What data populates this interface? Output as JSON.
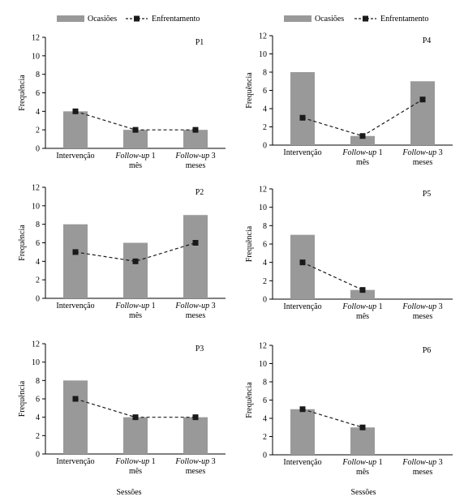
{
  "legend": {
    "bar_label": "Ocasiões",
    "line_label": "Enfrentamento",
    "bar_color": "#999999",
    "line_color": "#1a1a1a"
  },
  "axis_common": {
    "ylabel": "Frequência",
    "xlabel": "Sessões"
  },
  "chart_data": [
    {
      "type": "bar",
      "panel": "P1",
      "categories": [
        "Intervenção",
        "Follow-up 1 mês",
        "Follow-up 3 meses"
      ],
      "series": [
        {
          "name": "Ocasiões",
          "type": "bar",
          "values": [
            4,
            2,
            2
          ]
        },
        {
          "name": "Enfrentamento",
          "type": "line",
          "values": [
            4,
            2,
            2
          ]
        }
      ],
      "ylabel": "Frequência",
      "ylim": [
        0,
        12
      ],
      "yticks": [
        0,
        2,
        4,
        6,
        8,
        10,
        12
      ]
    },
    {
      "type": "bar",
      "panel": "P4",
      "categories": [
        "Intervenção",
        "Follow-up 1 mês",
        "Follow-up 3 meses"
      ],
      "series": [
        {
          "name": "Ocasiões",
          "type": "bar",
          "values": [
            8,
            1,
            7
          ]
        },
        {
          "name": "Enfrentamento",
          "type": "line",
          "values": [
            3,
            1,
            5
          ]
        }
      ],
      "ylabel": "Frequência",
      "ylim": [
        0,
        12
      ],
      "yticks": [
        0,
        2,
        4,
        6,
        8,
        10,
        12
      ]
    },
    {
      "type": "bar",
      "panel": "P2",
      "categories": [
        "Intervenção",
        "Follow-up 1 mês",
        "Follow-up 3 meses"
      ],
      "series": [
        {
          "name": "Ocasiões",
          "type": "bar",
          "values": [
            8,
            6,
            9
          ]
        },
        {
          "name": "Enfrentamento",
          "type": "line",
          "values": [
            5,
            4,
            6
          ]
        }
      ],
      "ylabel": "Frequência",
      "ylim": [
        0,
        12
      ],
      "yticks": [
        0,
        2,
        4,
        6,
        8,
        10,
        12
      ]
    },
    {
      "type": "bar",
      "panel": "P5",
      "categories": [
        "Intervenção",
        "Follow-up 1 mês",
        "Follow-up 3 meses"
      ],
      "series": [
        {
          "name": "Ocasiões",
          "type": "bar",
          "values": [
            7,
            1,
            null
          ]
        },
        {
          "name": "Enfrentamento",
          "type": "line",
          "values": [
            4,
            1,
            null
          ]
        }
      ],
      "ylabel": "Frequência",
      "ylim": [
        0,
        12
      ],
      "yticks": [
        0,
        2,
        4,
        6,
        8,
        10,
        12
      ]
    },
    {
      "type": "bar",
      "panel": "P3",
      "categories": [
        "Intervenção",
        "Follow-up 1 mês",
        "Follow-up 3 meses"
      ],
      "series": [
        {
          "name": "Ocasiões",
          "type": "bar",
          "values": [
            8,
            4,
            4
          ]
        },
        {
          "name": "Enfrentamento",
          "type": "line",
          "values": [
            6,
            4,
            4
          ]
        }
      ],
      "ylabel": "Frequência",
      "ylim": [
        0,
        12
      ],
      "yticks": [
        0,
        2,
        4,
        6,
        8,
        10,
        12
      ]
    },
    {
      "type": "bar",
      "panel": "P6",
      "categories": [
        "Intervenção",
        "Follow-up 1 mês",
        "Follow-up 3 meses"
      ],
      "series": [
        {
          "name": "Ocasiões",
          "type": "bar",
          "values": [
            5,
            3,
            null
          ]
        },
        {
          "name": "Enfrentamento",
          "type": "line",
          "values": [
            5,
            3,
            null
          ]
        }
      ],
      "ylabel": "Frequência",
      "ylim": [
        0,
        12
      ],
      "yticks": [
        0,
        2,
        4,
        6,
        8,
        10,
        12
      ]
    }
  ]
}
